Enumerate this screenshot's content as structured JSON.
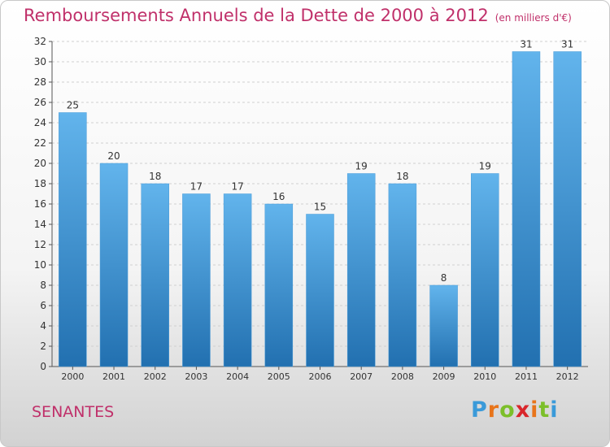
{
  "title": "Remboursements Annuels de la Dette de 2000 à 2012",
  "subtitle": "(en milliers d'€)",
  "commune": "SENANTES",
  "logo": {
    "letters": [
      "P",
      "r",
      "o",
      "x",
      "i",
      "t",
      "i"
    ],
    "colors": [
      "#3a9ad9",
      "#e8741a",
      "#7cbf2a",
      "#d9262b",
      "#e8741a",
      "#7cbf2a",
      "#3a9ad9"
    ]
  },
  "colors": {
    "bar_top": "#62b4ec",
    "bar_bottom": "#2270b0",
    "grid": "#d0d0d0",
    "axis": "#555555",
    "text": "#333333"
  },
  "chart_data": {
    "type": "bar",
    "title": "Remboursements Annuels de la Dette de 2000 à 2012",
    "xlabel": "",
    "ylabel": "en milliers d'€",
    "categories": [
      "2000",
      "2001",
      "2002",
      "2003",
      "2004",
      "2005",
      "2006",
      "2007",
      "2008",
      "2009",
      "2010",
      "2011",
      "2012"
    ],
    "values": [
      25,
      20,
      18,
      17,
      17,
      16,
      15,
      19,
      18,
      8,
      19,
      31,
      31
    ],
    "ylim": [
      0,
      32
    ],
    "yticks": [
      0,
      2,
      4,
      6,
      8,
      10,
      12,
      14,
      16,
      18,
      20,
      22,
      24,
      26,
      28,
      30,
      32
    ],
    "grid": true
  }
}
